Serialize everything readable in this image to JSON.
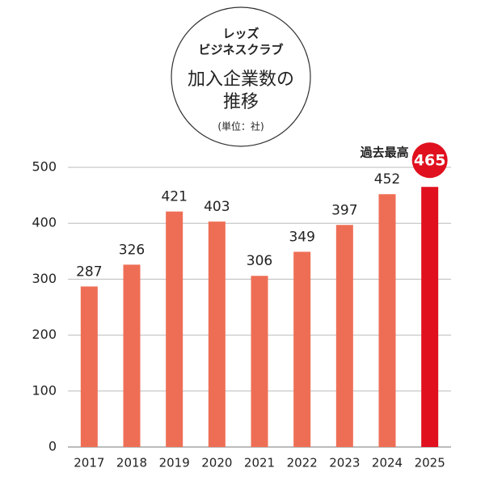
{
  "chart_data": {
    "type": "bar",
    "brand": [
      "レッズ",
      "ビジネスクラブ"
    ],
    "title": [
      "加入企業数の",
      "推移"
    ],
    "unit_note": "(単位：社)",
    "annotation": "過去最高",
    "categories": [
      "2017",
      "2018",
      "2019",
      "2020",
      "2021",
      "2022",
      "2023",
      "2024",
      "2025"
    ],
    "values": [
      287,
      326,
      421,
      403,
      306,
      349,
      397,
      452,
      465
    ],
    "colors": [
      "#ee6e55",
      "#ee6e55",
      "#ee6e55",
      "#ee6e55",
      "#ee6e55",
      "#ee6e55",
      "#ee6e55",
      "#ee6e55",
      "#e0101e"
    ],
    "highlight_color": "#e0101e",
    "ylim": [
      0,
      500
    ],
    "yticks": [
      0,
      100,
      200,
      300,
      400,
      500
    ],
    "grid": true
  }
}
